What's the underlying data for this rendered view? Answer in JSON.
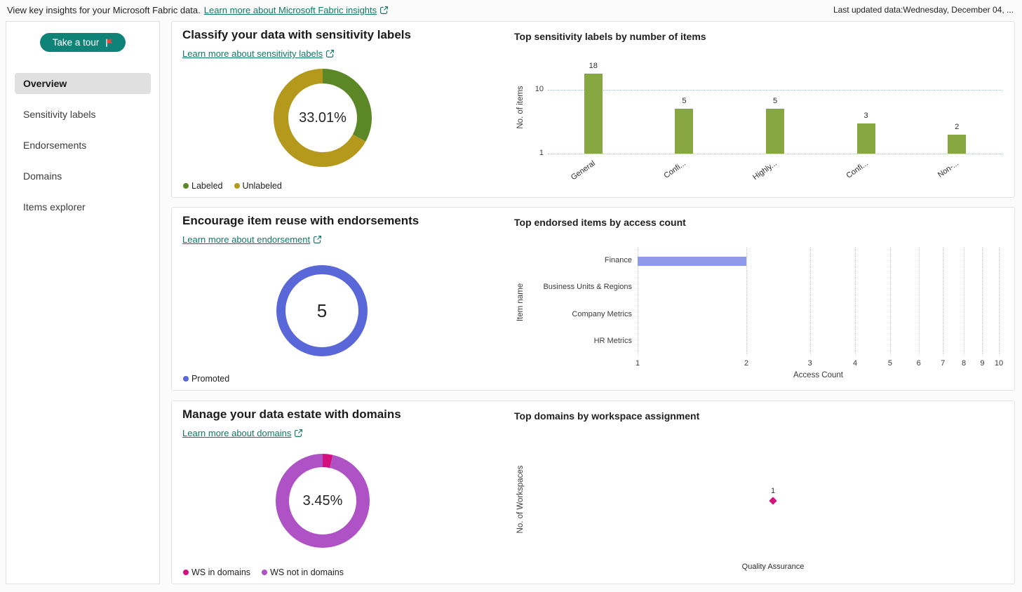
{
  "header": {
    "intro": "View key insights for your Microsoft Fabric data.",
    "link_label": "Learn more about Microsoft Fabric insights",
    "last_updated": "Last updated data:Wednesday, December 04, ..."
  },
  "sidebar": {
    "tour_button_label": "Take a tour",
    "items": [
      {
        "label": "Overview",
        "active": true
      },
      {
        "label": "Sensitivity labels",
        "active": false
      },
      {
        "label": "Endorsements",
        "active": false
      },
      {
        "label": "Domains",
        "active": false
      },
      {
        "label": "Items explorer",
        "active": false
      }
    ]
  },
  "cards": [
    {
      "title": "Classify your data with sensitivity labels",
      "link_label": "Learn more about sensitivity labels",
      "chart_title": "Top sensitivity labels by number of items",
      "donut_center": "33.01%",
      "legend": [
        {
          "label": "Labeled",
          "color": "#5c8727"
        },
        {
          "label": "Unlabeled",
          "color": "#b5991d"
        }
      ]
    },
    {
      "title": "Encourage item reuse with endorsements",
      "link_label": "Learn more about endorsement",
      "chart_title": "Top endorsed items by access count",
      "donut_center": "5",
      "legend": [
        {
          "label": "Promoted",
          "color": "#5a67d8"
        }
      ]
    },
    {
      "title": "Manage your data estate with domains",
      "link_label": "Learn more about domains",
      "chart_title": "Top domains by workspace assignment",
      "donut_center": "3.45%",
      "legend": [
        {
          "label": "WS in domains",
          "color": "#d3117c"
        },
        {
          "label": "WS not in domains",
          "color": "#af52c6"
        }
      ]
    }
  ],
  "chart_data": [
    {
      "type": "pie",
      "subtype": "donut",
      "center_label": "33.01%",
      "slices": [
        {
          "label": "Labeled",
          "value": 33.01,
          "color": "#5c8727"
        },
        {
          "label": "Unlabeled",
          "value": 66.99,
          "color": "#b5991d"
        }
      ]
    },
    {
      "type": "bar",
      "title": "Top sensitivity labels by number of items",
      "categories": [
        "General",
        "Confi...",
        "Highly...",
        "Confi...",
        "Non-..."
      ],
      "values": [
        18,
        5,
        5,
        3,
        2
      ],
      "ylabel": "No. of items",
      "yticks": [
        1,
        10
      ],
      "scale": "log",
      "grid": true,
      "bar_color": "#87a840",
      "grid_color": "#9fc3cf"
    },
    {
      "type": "pie",
      "subtype": "donut",
      "center_label": "5",
      "slices": [
        {
          "label": "Promoted",
          "value": 5,
          "color": "#5a67d8"
        }
      ]
    },
    {
      "type": "bar",
      "orientation": "horizontal",
      "title": "Top endorsed items by access count",
      "categories": [
        "Finance",
        "Business Units & Regions",
        "Company Metrics",
        "HR Metrics"
      ],
      "values": [
        2,
        1,
        1,
        1
      ],
      "xlabel": "Access Count",
      "ylabel": "Item name",
      "xticks": [
        1,
        2,
        3,
        4,
        5,
        6,
        7,
        8,
        9,
        10
      ],
      "scale": "log",
      "grid": true,
      "bar_color": "#8e99e8",
      "grid_color": "#c3c7d2"
    },
    {
      "type": "scatter",
      "title": "Top domains by workspace assignment",
      "ylabel": "No. of Workspaces",
      "points": [
        {
          "label": "Quality Assurance",
          "value": 1
        }
      ],
      "point_color": "#d3117c"
    },
    {
      "type": "pie",
      "subtype": "donut",
      "center_label": "3.45%",
      "slices": [
        {
          "label": "WS in domains",
          "value": 3.45,
          "color": "#d3117c"
        },
        {
          "label": "WS not in domains",
          "value": 96.55,
          "color": "#af52c6"
        }
      ]
    }
  ]
}
